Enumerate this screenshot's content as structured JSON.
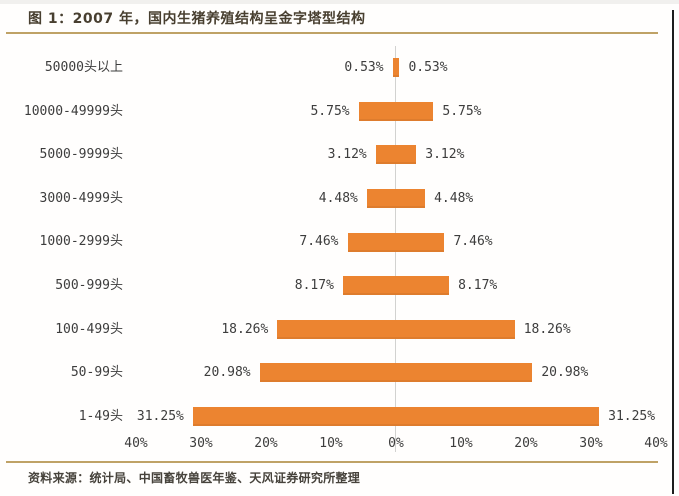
{
  "header": {
    "title": "图 1：2007 年，国内生猪养殖结构呈金字塔型结构"
  },
  "footer": {
    "source": "资料来源：统计局、中国畜牧兽医年鉴、天风证券研究所整理"
  },
  "colors": {
    "bar": "#ec8430",
    "gold_rule": "#bfa266",
    "zero_axis_line": "#d2d2d0",
    "text": "#3d3d3d",
    "title_text": "#483f30",
    "right_edge_line": "#1d1d1d"
  },
  "chart_data": {
    "type": "bar",
    "subtype": "mirrored-tornado",
    "orientation": "horizontal",
    "title": "图 1：2007 年，国内生猪养殖结构呈金字塔型结构",
    "categories": [
      "50000头以上",
      "10000-49999头",
      "5000-9999头",
      "3000-4999头",
      "1000-2999头",
      "500-999头",
      "100-499头",
      "50-99头",
      "1-49头"
    ],
    "values": [
      0.53,
      5.75,
      3.12,
      4.48,
      7.46,
      8.17,
      18.26,
      20.98,
      31.25
    ],
    "value_labels": [
      "0.53%",
      "5.75%",
      "3.12%",
      "4.48%",
      "7.46%",
      "8.17%",
      "18.26%",
      "20.98%",
      "31.25%"
    ],
    "value_label_sides": "both",
    "axis_ticks": [
      "40%",
      "30%",
      "20%",
      "10%",
      "0%",
      "10%20%",
      "30%",
      "40%"
    ],
    "axis_tick_labels": [
      "40%",
      "30%",
      "20%",
      "10%",
      "0%",
      "10%",
      "20%",
      "30%",
      "40%"
    ],
    "xlim_each_side": 40,
    "grid": false,
    "legend": null,
    "bar_color": "#ec8430",
    "ylabel": "",
    "xlabel": ""
  }
}
